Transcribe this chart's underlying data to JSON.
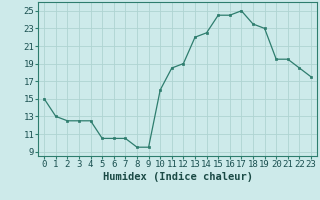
{
  "x": [
    0,
    1,
    2,
    3,
    4,
    5,
    6,
    7,
    8,
    9,
    10,
    11,
    12,
    13,
    14,
    15,
    16,
    17,
    18,
    19,
    20,
    21,
    22,
    23
  ],
  "y": [
    15,
    13,
    12.5,
    12.5,
    12.5,
    10.5,
    10.5,
    10.5,
    9.5,
    9.5,
    16,
    18.5,
    19,
    22,
    22.5,
    24.5,
    24.5,
    25,
    23.5,
    23,
    19.5,
    19.5,
    18.5,
    17.5
  ],
  "xlabel": "Humidex (Indice chaleur)",
  "xlim": [
    -0.5,
    23.5
  ],
  "ylim": [
    8.5,
    26
  ],
  "yticks": [
    9,
    11,
    13,
    15,
    17,
    19,
    21,
    23,
    25
  ],
  "xticks": [
    0,
    1,
    2,
    3,
    4,
    5,
    6,
    7,
    8,
    9,
    10,
    11,
    12,
    13,
    14,
    15,
    16,
    17,
    18,
    19,
    20,
    21,
    22,
    23
  ],
  "line_color": "#2e7d6e",
  "marker_color": "#2e7d6e",
  "bg_color": "#cdeaea",
  "grid_color": "#afd4d2",
  "tick_label_fontsize": 6.5,
  "xlabel_fontsize": 7.5
}
